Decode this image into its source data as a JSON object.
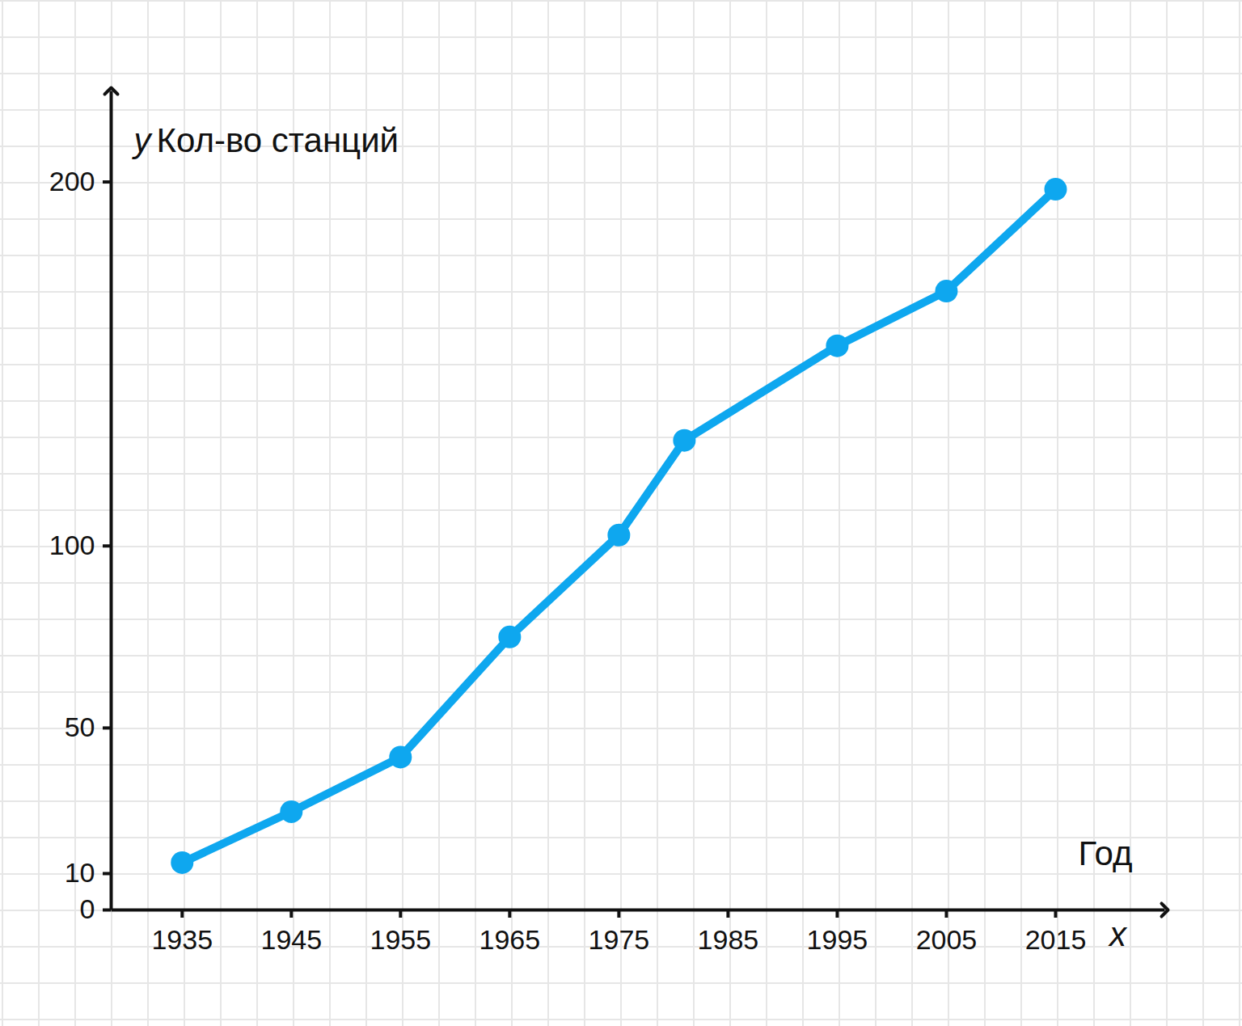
{
  "chart_data": {
    "type": "line",
    "y_label": "Кол-во станций",
    "x_label": "Год",
    "y_symbol": "y",
    "x_symbol": "x",
    "x": [
      1935,
      1945,
      1955,
      1965,
      1975,
      1981,
      1995,
      2005,
      2015
    ],
    "values": [
      13,
      27,
      42,
      75,
      103,
      129,
      155,
      170,
      198
    ],
    "color": "#0ea7ef",
    "marker": "o",
    "xlim": [
      1928.5,
      2025
    ],
    "xticks": [
      1935,
      1945,
      1955,
      1965,
      1975,
      1985,
      1995,
      2005,
      2015
    ],
    "ylim": [
      0,
      225
    ],
    "yticks": [
      0,
      10,
      50,
      100,
      200
    ]
  }
}
